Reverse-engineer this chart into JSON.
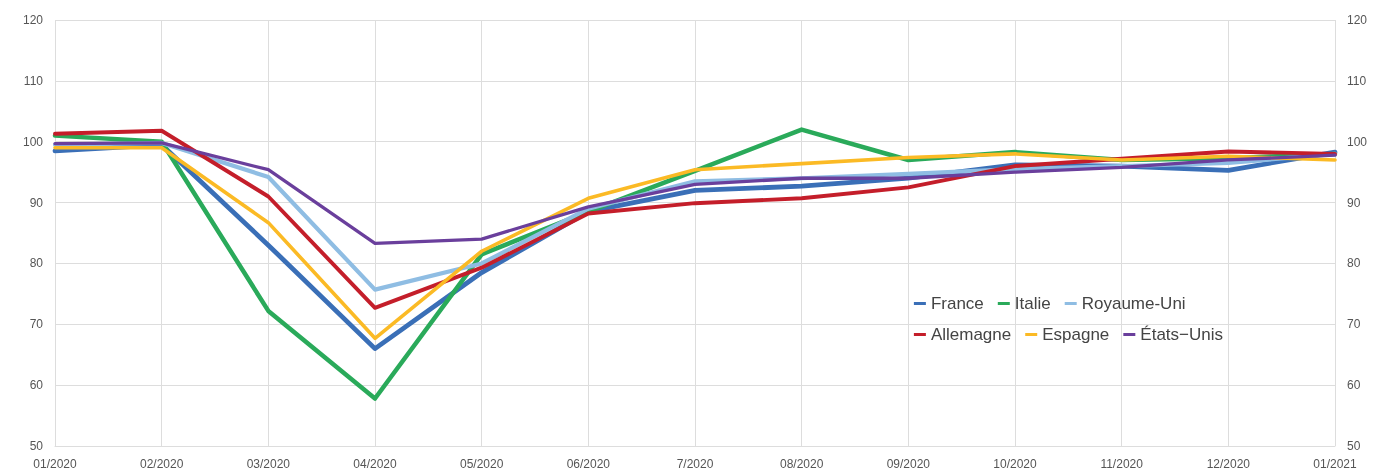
{
  "chart_data": {
    "type": "line",
    "categories": [
      "01/2020",
      "02/2020",
      "03/2020",
      "04/2020",
      "05/2020",
      "06/2020",
      "7/2020",
      "08/2020",
      "09/2020",
      "10/2020",
      "11/2020",
      "12/2020",
      "01/2021"
    ],
    "series": [
      {
        "name": "France",
        "color": "#3a6fb7",
        "values": [
          98.5,
          99.5,
          83,
          66,
          78.5,
          88.5,
          92,
          92.7,
          94,
          96.2,
          96,
          95.3,
          98.3
        ]
      },
      {
        "name": "Italie",
        "color": "#2aaa5a",
        "values": [
          101,
          100,
          72.2,
          57.8,
          81.5,
          88.5,
          95.2,
          102,
          97,
          98.3,
          97,
          97.3,
          98
        ]
      },
      {
        "name": "Royaume-Uni",
        "color": "#8fbde3",
        "values": [
          99.5,
          99.8,
          94.2,
          75.7,
          80,
          89,
          93.5,
          94,
          94.7,
          95.5,
          96,
          96.5,
          98
        ]
      },
      {
        "name": "Allemagne",
        "color": "#c41e2a",
        "values": [
          101.3,
          101.8,
          91,
          72.7,
          79.3,
          88.2,
          89.9,
          90.7,
          92.5,
          96,
          97.2,
          98.4,
          98
        ]
      },
      {
        "name": "Espagne",
        "color": "#fbba25",
        "values": [
          99,
          99,
          86.7,
          67.7,
          82,
          90.7,
          95.4,
          96.4,
          97.4,
          98,
          97,
          97.6,
          97
        ]
      },
      {
        "name": "États−Unis",
        "color": "#6a3f9c",
        "values": [
          99.7,
          99.8,
          95.4,
          83.3,
          84,
          89.3,
          93,
          94,
          94,
          95,
          95.8,
          97,
          97.8
        ]
      }
    ],
    "ylim": [
      50,
      120
    ],
    "yticks": [
      50,
      60,
      70,
      80,
      90,
      100,
      110,
      120
    ],
    "y2lim": [
      50,
      120
    ],
    "y2ticks": [
      50,
      60,
      70,
      80,
      90,
      100,
      110,
      120
    ],
    "grid": true,
    "legend": "right",
    "marker": "none",
    "line_style": "solid"
  }
}
